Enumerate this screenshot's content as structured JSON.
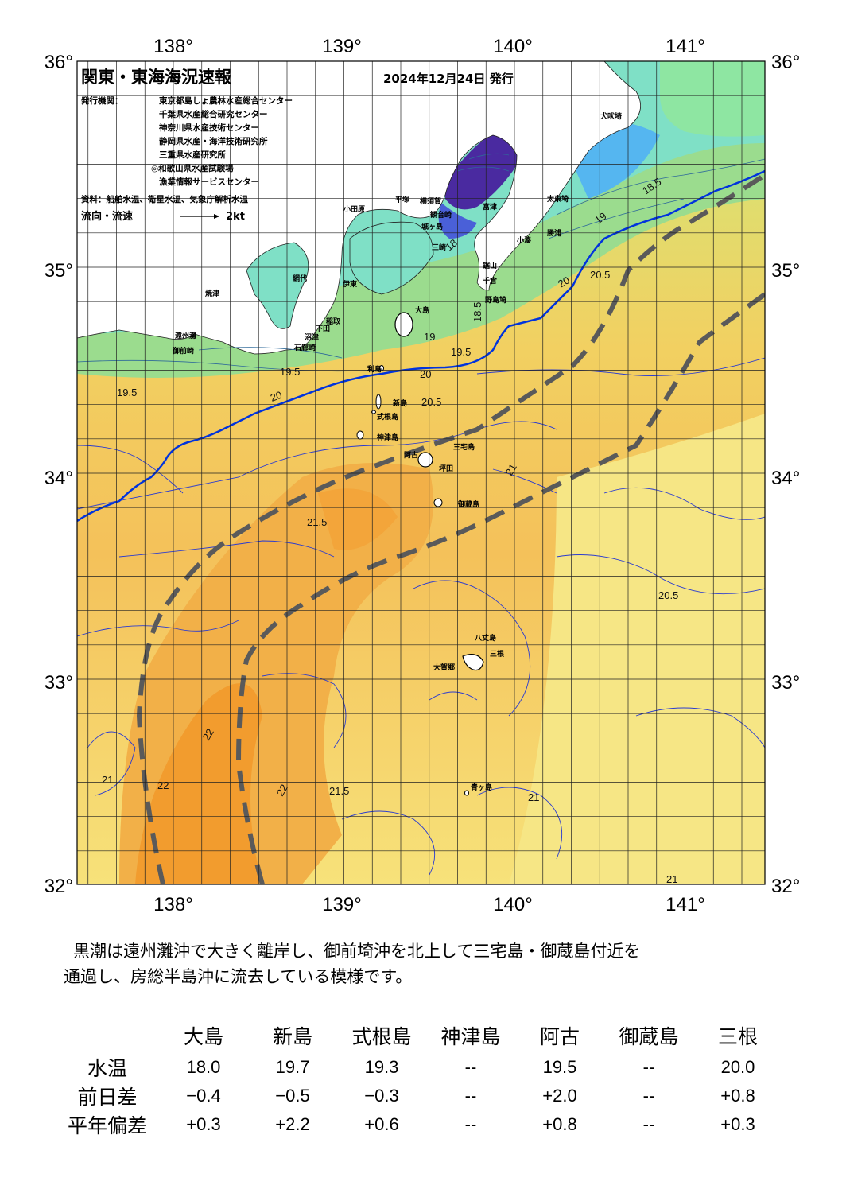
{
  "map": {
    "title": "関東・東海海況速報",
    "issue_date": "2024年12月24日 発行",
    "issuers_label": "発行機関：",
    "issuers": [
      "東京都島しょ農林水産総合センター",
      "千葉県水産総合研究センター",
      "神奈川県水産技術センター",
      "静岡県水産・海洋技術研究所",
      "三重県水産研究所",
      "◎和歌山県水産試験場",
      "漁業情報サービスセンター"
    ],
    "source": "資料：船舶水温、衛星水温、気象庁解析水温",
    "flow_legend": "流向・流速",
    "flow_scale": "2kt",
    "lon_ticks": [
      "138°",
      "139°",
      "140°",
      "141°"
    ],
    "lat_ticks": [
      "36°",
      "35°",
      "34°",
      "33°",
      "32°"
    ],
    "places": [
      {
        "name": "犬吠埼"
      },
      {
        "name": "太東埼"
      },
      {
        "name": "勝浦"
      },
      {
        "name": "小湊"
      },
      {
        "name": "鋸山"
      },
      {
        "name": "千倉"
      },
      {
        "name": "野島埼"
      },
      {
        "name": "富津"
      },
      {
        "name": "観音崎"
      },
      {
        "name": "横須賀"
      },
      {
        "name": "平塚"
      },
      {
        "name": "小田原"
      },
      {
        "name": "城ヶ島"
      },
      {
        "name": "三崎"
      },
      {
        "name": "大島"
      },
      {
        "name": "網代"
      },
      {
        "name": "伊東"
      },
      {
        "name": "稲取"
      },
      {
        "name": "下田"
      },
      {
        "name": "石廊崎"
      },
      {
        "name": "沼津"
      },
      {
        "name": "焼津"
      },
      {
        "name": "御前崎"
      },
      {
        "name": "遠州灘"
      },
      {
        "name": "利島"
      },
      {
        "name": "新島"
      },
      {
        "name": "式根島"
      },
      {
        "name": "神津島"
      },
      {
        "name": "阿古"
      },
      {
        "name": "三宅島"
      },
      {
        "name": "坪田"
      },
      {
        "name": "御蔵島"
      },
      {
        "name": "八丈島"
      },
      {
        "name": "三根"
      },
      {
        "name": "大賀郷"
      },
      {
        "name": "青ヶ島"
      }
    ],
    "contour_labels": [
      "18.5",
      "19",
      "19.5",
      "20",
      "20.5",
      "21",
      "21.5",
      "22",
      "22",
      "22",
      "21",
      "19.5",
      "20",
      "20.5",
      "21",
      "21.5",
      "18",
      "18.5",
      "19",
      "19.5",
      "20",
      "20.5",
      "21"
    ]
  },
  "summary": [
    "黒潮は遠州灘沖で大きく離岸し、御前埼沖を北上して三宅島・御蔵島付近を",
    "通過し、房総半島沖に流去している模様です。"
  ],
  "table": {
    "columns": [
      "大島",
      "新島",
      "式根島",
      "神津島",
      "阿古",
      "御蔵島",
      "三根"
    ],
    "rows": [
      {
        "label": "水温",
        "values": [
          "18.0",
          "19.7",
          "19.3",
          "--",
          "19.5",
          "--",
          "20.0"
        ]
      },
      {
        "label": "前日差",
        "values": [
          "−0.4",
          "−0.5",
          "−0.3",
          "--",
          "+2.0",
          "--",
          "+0.8"
        ]
      },
      {
        "label": "平年偏差",
        "values": [
          "+0.3",
          "+2.2",
          "+0.6",
          "--",
          "+0.8",
          "--",
          "+0.3"
        ]
      }
    ]
  },
  "colors": {
    "kuroshio_line": "#5a5a5a",
    "front_line": "#0033dd",
    "cold_water": "#4a2aa0",
    "warm_core": "#f2a33a"
  }
}
